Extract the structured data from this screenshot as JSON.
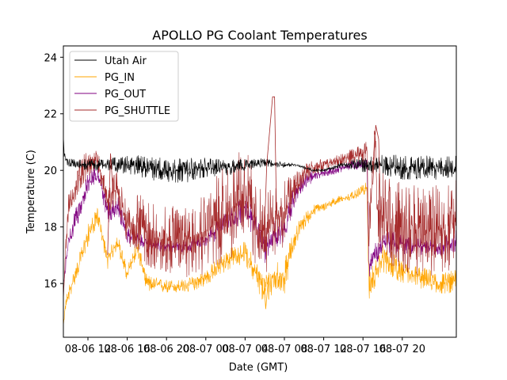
{
  "chart_data": {
    "type": "line",
    "title": "APOLLO PG Coolant Temperatures",
    "xlabel": "Date (GMT)",
    "ylabel": "Temperature (C)",
    "xlim_hours": [
      9.5,
      49.5
    ],
    "ylim": [
      14.1,
      24.4
    ],
    "x_ticks": [
      {
        "hour": 12,
        "label": "08-06 12"
      },
      {
        "hour": 16,
        "label": "08-06 16"
      },
      {
        "hour": 20,
        "label": "08-06 20"
      },
      {
        "hour": 24,
        "label": "08-07 00"
      },
      {
        "hour": 28,
        "label": "08-07 04"
      },
      {
        "hour": 32,
        "label": "08-07 08"
      },
      {
        "hour": 36,
        "label": "08-07 12"
      },
      {
        "hour": 40,
        "label": "08-07 16"
      },
      {
        "hour": 44,
        "label": "08-07 20"
      }
    ],
    "y_ticks": [
      16,
      18,
      20,
      22,
      24
    ],
    "y_tick_labels": [
      "16",
      "18",
      "20",
      "22",
      "24"
    ],
    "legend_location": "upper-left",
    "series": [
      {
        "name": "Utah Air",
        "color": "#000000",
        "x": [
          9.5,
          9.6,
          10,
          12,
          14,
          16,
          18,
          20,
          22,
          24,
          26,
          28,
          30,
          32,
          33,
          34,
          35,
          36,
          37,
          38,
          40,
          42,
          44,
          46,
          48,
          49.5
        ],
        "y": [
          21.2,
          20.5,
          20.3,
          20.2,
          20.2,
          20.2,
          20.1,
          20.0,
          20.0,
          20.1,
          20.1,
          20.2,
          20.3,
          20.2,
          20.2,
          20.1,
          20.0,
          20.0,
          20.1,
          20.2,
          20.2,
          20.2,
          20.1,
          20.1,
          20.1,
          20.1
        ],
        "noise": [
          0,
          0.3,
          0.3,
          0.4,
          0.4,
          0.6,
          0.8,
          0.8,
          0.8,
          0.7,
          0.6,
          0.4,
          0.3,
          0.2,
          0.1,
          0.1,
          0.1,
          0.1,
          0.1,
          0.2,
          0.5,
          0.7,
          0.8,
          0.8,
          0.8,
          0.8
        ]
      },
      {
        "name": "PG_IN",
        "color": "#ffa500",
        "x": [
          9.5,
          9.7,
          10,
          11,
          12,
          13,
          14,
          15,
          16,
          17,
          18,
          20,
          22,
          24,
          26,
          28,
          29,
          30,
          31,
          32,
          33,
          34,
          35,
          36,
          37,
          38,
          39,
          40,
          40.4,
          40.6,
          42,
          44,
          46,
          48,
          49.5
        ],
        "y": [
          14.5,
          15.2,
          15.6,
          16.6,
          17.7,
          18.4,
          16.8,
          17.5,
          16.3,
          17.3,
          16.0,
          15.9,
          15.9,
          16.2,
          16.8,
          17.1,
          16.4,
          15.7,
          16.3,
          16.2,
          17.6,
          18.2,
          18.6,
          18.7,
          18.9,
          19.0,
          19.1,
          19.3,
          19.4,
          15.9,
          16.9,
          16.4,
          16.2,
          16.0,
          16.1
        ],
        "noise": [
          0,
          0.2,
          0.3,
          0.3,
          0.4,
          0.3,
          0.3,
          0.3,
          0.3,
          0.3,
          0.3,
          0.25,
          0.25,
          0.3,
          0.4,
          0.4,
          0.5,
          0.6,
          0.6,
          0.6,
          0.4,
          0.3,
          0.2,
          0.15,
          0.15,
          0.15,
          0.15,
          0.2,
          0.2,
          0.5,
          0.5,
          0.4,
          0.4,
          0.4,
          0.4
        ]
      },
      {
        "name": "PG_OUT",
        "color": "#800080",
        "x": [
          9.5,
          9.7,
          10,
          11,
          12,
          13,
          14,
          15,
          16,
          17,
          18,
          20,
          22,
          24,
          26,
          28,
          29,
          30,
          31,
          32,
          33,
          34,
          35,
          36,
          37,
          38,
          39,
          40,
          40.4,
          40.6,
          42,
          44,
          46,
          48,
          49.5
        ],
        "y": [
          16.0,
          16.5,
          17.5,
          18.5,
          19.5,
          20.0,
          18.5,
          18.8,
          17.7,
          17.6,
          17.4,
          17.3,
          17.3,
          17.6,
          18.1,
          18.7,
          18.0,
          17.3,
          17.8,
          17.9,
          19.1,
          19.6,
          19.8,
          19.9,
          20.0,
          20.1,
          20.2,
          20.2,
          20.3,
          16.6,
          17.5,
          17.4,
          17.3,
          17.3,
          17.5
        ],
        "noise": [
          0,
          0.3,
          0.4,
          0.4,
          0.4,
          0.3,
          0.4,
          0.4,
          0.3,
          0.25,
          0.2,
          0.2,
          0.2,
          0.3,
          0.4,
          0.5,
          0.5,
          0.6,
          0.6,
          0.5,
          0.4,
          0.3,
          0.2,
          0.15,
          0.15,
          0.15,
          0.15,
          0.2,
          0.2,
          0.4,
          0.4,
          0.4,
          0.3,
          0.3,
          0.4
        ]
      },
      {
        "name": "PG_SHUTTLE",
        "color": "#a52a2a",
        "x": [
          9.5,
          9.7,
          10,
          11,
          12,
          13,
          14,
          15,
          16,
          17,
          18,
          20,
          22,
          24,
          26,
          28,
          29,
          30,
          31,
          32,
          33,
          34,
          35,
          36,
          37,
          38,
          39,
          40,
          40.4,
          40.6,
          41.2,
          41.5,
          42,
          44,
          46,
          48,
          49.5
        ],
        "y": [
          15.4,
          17.0,
          18.5,
          19.8,
          20.2,
          20.3,
          19.0,
          19.4,
          18.0,
          18.2,
          17.8,
          17.5,
          17.6,
          17.9,
          18.4,
          19.2,
          18.2,
          17.6,
          18.3,
          18.5,
          19.4,
          19.9,
          20.1,
          20.2,
          20.3,
          20.4,
          20.5,
          20.5,
          20.9,
          17.5,
          21.5,
          18.6,
          18.4,
          18.0,
          17.8,
          17.9,
          18.2
        ],
        "noise": [
          0,
          0.4,
          0.6,
          0.6,
          0.5,
          0.4,
          0.6,
          0.6,
          0.8,
          1.0,
          1.2,
          1.2,
          1.4,
          1.6,
          1.8,
          1.8,
          1.6,
          1.4,
          1.4,
          1.2,
          0.6,
          0.4,
          0.3,
          0.2,
          0.2,
          0.2,
          0.3,
          0.4,
          0.5,
          0.8,
          0.6,
          1.4,
          1.6,
          1.6,
          1.6,
          1.6,
          1.6
        ]
      }
    ],
    "spikes": [
      {
        "series": "PG_SHUTTLE",
        "x": [
          29.9,
          30.2,
          30.8,
          31.0,
          31.2
        ],
        "y": [
          17.1,
          20.2,
          22.6,
          22.6,
          18.4
        ]
      },
      {
        "series": "PG_IN",
        "x": [
          29.9,
          30.1,
          30.4
        ],
        "y": [
          16.2,
          15.1,
          16.3
        ]
      },
      {
        "series": "PG_SHUTTLE",
        "x": [
          14.0,
          14.3,
          14.6
        ],
        "y": [
          17.0,
          20.6,
          19.0
        ]
      },
      {
        "series": "PG_SHUTTLE",
        "x": [
          41.0,
          41.3,
          41.6,
          41.8
        ],
        "y": [
          19.5,
          21.6,
          21.1,
          18.5
        ]
      }
    ]
  }
}
